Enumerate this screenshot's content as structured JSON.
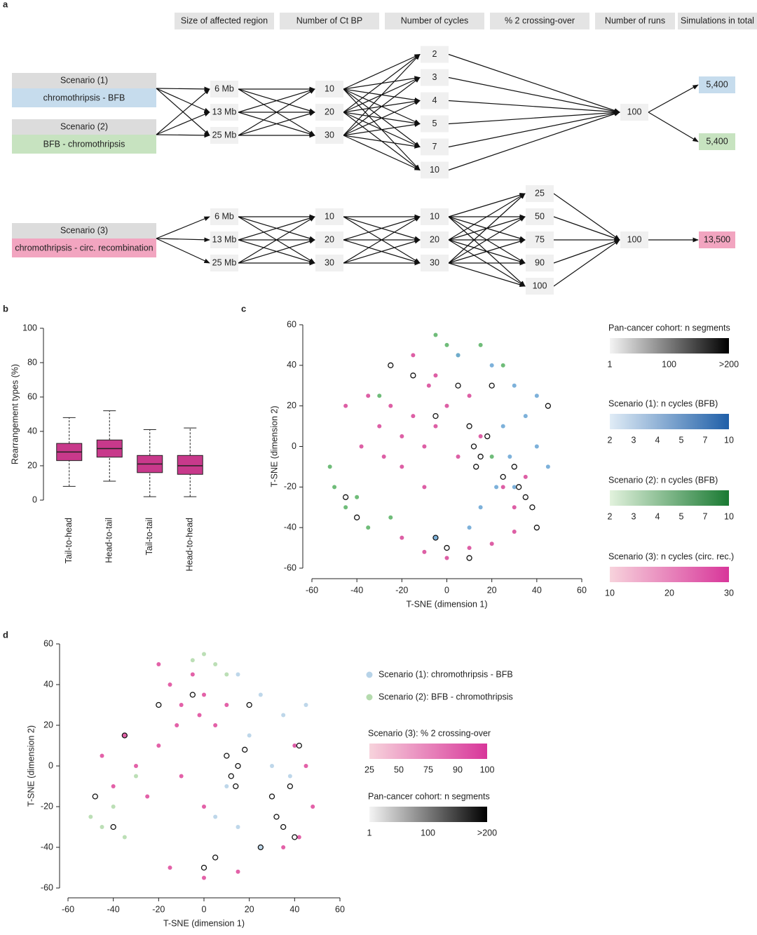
{
  "panel_labels": [
    "a",
    "b",
    "c",
    "d"
  ],
  "diagram": {
    "headers": [
      "Size of affected region",
      "Number of Ct BP",
      "Number of cycles",
      "% 2 crossing-over",
      "Number of runs",
      "Simulations in total"
    ],
    "flows": [
      {
        "scenarios": [
          {
            "label": "Scenario (1)",
            "name": "chromothripsis - BFB",
            "color": "#c6dced"
          },
          {
            "label": "Scenario (2)",
            "name": "BFB - chromothripsis",
            "color": "#c7e3c0"
          }
        ],
        "columns": [
          [
            "6 Mb",
            "13 Mb",
            "25 Mb"
          ],
          [
            "10",
            "20",
            "30"
          ],
          [
            "2",
            "3",
            "4",
            "5",
            "7",
            "10"
          ],
          [
            "100"
          ]
        ],
        "totals": [
          {
            "label": "5,400",
            "color": "#c6dced"
          },
          {
            "label": "5,400",
            "color": "#c7e3c0"
          }
        ]
      },
      {
        "scenarios": [
          {
            "label": "Scenario (3)",
            "name": "chromothripsis - circ. recombination",
            "color": "#f2a5c0"
          }
        ],
        "columns": [
          [
            "6 Mb",
            "13 Mb",
            "25 Mb"
          ],
          [
            "10",
            "20",
            "30"
          ],
          [
            "10",
            "20",
            "30"
          ],
          [
            "25",
            "50",
            "75",
            "90",
            "100"
          ],
          [
            "100"
          ]
        ],
        "totals": [
          {
            "label": "13,500",
            "color": "#f2a5c0"
          }
        ]
      }
    ]
  },
  "chart_data": [
    {
      "type": "box",
      "y_label": "Rearrangement types (%)",
      "color": "#c2247e",
      "categories": [
        "Tail-to-head",
        "Head-to-tail",
        "Tail-to-tail",
        "Head-to-head"
      ],
      "whisker_low": [
        8,
        11,
        2,
        2
      ],
      "q1": [
        23,
        25,
        16,
        15
      ],
      "median": [
        28,
        30,
        21,
        20
      ],
      "q3": [
        33,
        35,
        26,
        26
      ],
      "whisker_high": [
        48,
        52,
        41,
        42
      ],
      "ylim": [
        0,
        100
      ],
      "yticks": [
        0,
        20,
        40,
        60,
        80,
        100
      ]
    },
    {
      "type": "scatter",
      "x_label": "T-SNE (dimension 1)",
      "y_label": "T-SNE (dimension 2)",
      "xlim": [
        -60,
        60
      ],
      "ylim": [
        -60,
        60
      ],
      "xticks": [
        -60,
        -40,
        -20,
        0,
        20,
        40,
        60
      ],
      "yticks": [
        -60,
        -40,
        -20,
        0,
        20,
        40,
        60
      ],
      "series": [
        {
          "color": "#5fb56a",
          "marker": "filled",
          "x": [
            0,
            5,
            15,
            25,
            -5,
            -50,
            -45,
            -35,
            -40,
            -25,
            -30,
            20,
            -52
          ],
          "y": [
            50,
            45,
            50,
            40,
            55,
            -20,
            -30,
            -40,
            -25,
            -35,
            25,
            -5,
            -10
          ]
        },
        {
          "color": "#6fa8d6",
          "marker": "filled",
          "x": [
            20,
            30,
            35,
            40,
            25,
            45,
            30,
            10,
            -5,
            15,
            5,
            40,
            28,
            22
          ],
          "y": [
            40,
            30,
            15,
            0,
            10,
            -10,
            -20,
            -40,
            -45,
            -30,
            45,
            25,
            -5,
            -20
          ]
        },
        {
          "color": "#d94e9b",
          "marker": "filled",
          "x": [
            -35,
            -30,
            -25,
            -20,
            -15,
            -10,
            -5,
            0,
            5,
            -20,
            -10,
            10,
            15,
            25,
            30,
            35,
            -45,
            -15,
            -5,
            -28,
            -20,
            -10,
            0,
            10,
            20,
            30,
            -38,
            -8
          ],
          "y": [
            25,
            10,
            20,
            5,
            15,
            0,
            10,
            20,
            -5,
            -10,
            -20,
            25,
            5,
            -20,
            -30,
            -15,
            20,
            45,
            35,
            -5,
            -45,
            -52,
            -55,
            -50,
            -48,
            -42,
            0,
            30
          ]
        },
        {
          "color": "#111111",
          "marker": "open",
          "x": [
            10,
            12,
            15,
            18,
            13,
            30,
            32,
            35,
            38,
            25,
            5,
            -5,
            -15,
            -45,
            -40,
            0,
            10,
            -5,
            45,
            40,
            20,
            -25
          ],
          "y": [
            10,
            0,
            -5,
            5,
            -10,
            -10,
            -20,
            -25,
            -30,
            -15,
            30,
            15,
            35,
            -25,
            -35,
            -50,
            -55,
            -45,
            20,
            -40,
            30,
            40
          ]
        }
      ],
      "colorbars": [
        {
          "title": "Pan-cancer cohort: n segments",
          "colors": [
            "#f4f4f4",
            "#000000"
          ],
          "lim": [
            1,
            200
          ],
          "ticks": [
            1,
            100,
            {
              "value": 200,
              "label": ">200"
            }
          ]
        },
        {
          "title": "Scenario (1): n cycles (BFB)",
          "colors": [
            "#e0ecf6",
            "#1f5fa8"
          ],
          "discrete": true,
          "ticks": [
            2,
            3,
            4,
            5,
            7,
            10
          ]
        },
        {
          "title": "Scenario (2): n cycles (BFB)",
          "colors": [
            "#e2f2dd",
            "#1a7a33"
          ],
          "discrete": true,
          "ticks": [
            2,
            3,
            4,
            5,
            7,
            10
          ]
        },
        {
          "title": "Scenario (3): n cycles (circ. rec.)",
          "colors": [
            "#f7d3dc",
            "#d8369a"
          ],
          "lim": [
            10,
            30
          ],
          "ticks": [
            10,
            20,
            30
          ]
        }
      ]
    },
    {
      "type": "scatter",
      "x_label": "T-SNE (dimension 1)",
      "y_label": "T-SNE (dimension 2)",
      "xlim": [
        -60,
        60
      ],
      "ylim": [
        -60,
        60
      ],
      "xticks": [
        -60,
        -40,
        -20,
        0,
        20,
        40,
        60
      ],
      "yticks": [
        -60,
        -40,
        -20,
        0,
        20,
        40,
        60
      ],
      "series": [
        {
          "name": "Scenario (1): chromothripsis - BFB",
          "color": "#b7d3e8",
          "marker": "filled",
          "x": [
            15,
            25,
            35,
            40,
            30,
            20,
            10,
            5,
            15,
            25,
            38,
            45
          ],
          "y": [
            45,
            35,
            25,
            10,
            0,
            15,
            -10,
            -25,
            -30,
            -40,
            -5,
            30
          ]
        },
        {
          "name": "Scenario (2): BFB - chromothripsis",
          "color": "#b5dbae",
          "marker": "filled",
          "x": [
            0,
            5,
            -5,
            10,
            -50,
            -45,
            -35,
            -40,
            -30
          ],
          "y": [
            55,
            50,
            52,
            45,
            -25,
            -30,
            -35,
            -20,
            -5
          ]
        },
        {
          "color": "#e0509f",
          "marker": "filled",
          "x": [
            -20,
            -15,
            -10,
            -5,
            0,
            5,
            10,
            -12,
            -2,
            -45,
            -40,
            -35,
            -30,
            -25,
            -20,
            -10,
            0,
            40,
            45,
            48,
            42,
            35,
            -15,
            0,
            15
          ],
          "y": [
            50,
            40,
            30,
            45,
            35,
            20,
            30,
            20,
            25,
            5,
            -10,
            15,
            0,
            -15,
            10,
            -5,
            -20,
            10,
            0,
            -20,
            -35,
            -40,
            -50,
            -55,
            -52
          ]
        },
        {
          "color": "#111111",
          "marker": "open",
          "x": [
            10,
            12,
            15,
            18,
            14,
            30,
            32,
            35,
            38,
            40,
            20,
            -5,
            -35,
            -48,
            -40,
            5,
            0,
            25,
            -20,
            42
          ],
          "y": [
            5,
            -5,
            0,
            8,
            -10,
            -15,
            -25,
            -30,
            -10,
            -35,
            30,
            35,
            15,
            -15,
            -30,
            -45,
            -50,
            -40,
            30,
            10
          ]
        }
      ],
      "colorbars": [
        {
          "title": "Scenario (3): % 2 crossing-over",
          "colors": [
            "#f7d3dc",
            "#d8369a"
          ],
          "discrete": true,
          "ticks": [
            25,
            50,
            75,
            90,
            100
          ]
        },
        {
          "title": "Pan-cancer cohort: n segments",
          "colors": [
            "#f4f4f4",
            "#000000"
          ],
          "lim": [
            1,
            200
          ],
          "ticks": [
            1,
            100,
            {
              "value": 200,
              "label": ">200"
            }
          ]
        }
      ]
    }
  ]
}
